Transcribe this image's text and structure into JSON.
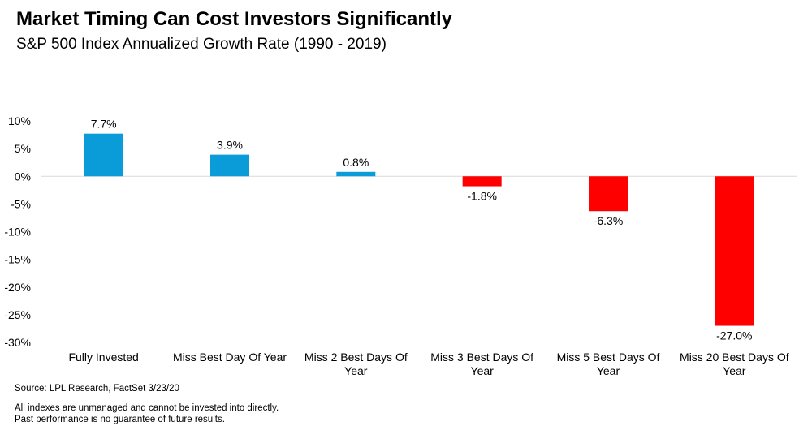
{
  "header": {
    "title": "Market Timing Can Cost Investors Significantly",
    "subtitle": "S&P 500 Index Annualized Growth Rate (1990 - 2019)"
  },
  "footer": {
    "source": "Source: LPL Research, FactSet 3/23/20",
    "disclaimer_lines": [
      "All indexes are unmanaged and cannot be invested into directly.",
      "Past performance is no guarantee of future results."
    ]
  },
  "chart_data": {
    "type": "bar",
    "title": "Market Timing Can Cost Investors Significantly",
    "subtitle": "S&P 500 Index Annualized Growth Rate (1990 - 2019)",
    "categories": [
      [
        "Fully Invested"
      ],
      [
        "Miss Best Day Of Year"
      ],
      [
        "Miss 2 Best Days Of",
        "Year"
      ],
      [
        "Miss 3 Best Days Of",
        "Year"
      ],
      [
        "Miss 5 Best Days Of",
        "Year"
      ],
      [
        "Miss 20 Best Days Of",
        "Year"
      ]
    ],
    "values": [
      7.7,
      3.9,
      0.8,
      -1.8,
      -6.3,
      -27.0
    ],
    "value_labels": [
      "7.7%",
      "3.9%",
      "0.8%",
      "-1.8%",
      "-6.3%",
      "-27.0%"
    ],
    "yticks": [
      10,
      5,
      0,
      -5,
      -10,
      -15,
      -20,
      -25,
      -30
    ],
    "ytick_labels": [
      "10%",
      "5%",
      "0%",
      "-5%",
      "-10%",
      "-15%",
      "-20%",
      "-25%",
      "-30%"
    ],
    "ylim": [
      -30,
      10
    ],
    "xlabel": "",
    "ylabel": "",
    "grid": false,
    "colors": {
      "positive": "#0A9BD9",
      "negative": "#FF0000",
      "zero_line": "#D9D9D9"
    }
  }
}
